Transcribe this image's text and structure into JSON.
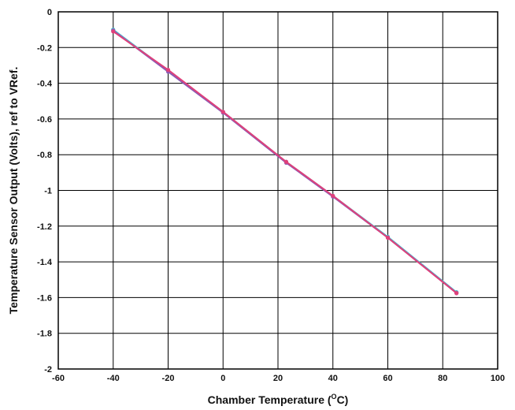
{
  "chart_data": {
    "type": "line",
    "title": "",
    "xlabel_prefix": "Chamber Temperature (",
    "xlabel_sup": "O",
    "xlabel_suffix": "C)",
    "ylabel": "Temperature Sensor Output (Volts), ref to VRef.",
    "xlim": [
      -60,
      100
    ],
    "ylim": [
      -2,
      0
    ],
    "x_ticks": [
      -60,
      -40,
      -20,
      0,
      20,
      40,
      60,
      80,
      100
    ],
    "y_ticks": [
      0,
      -0.2,
      -0.4,
      -0.6,
      -0.8,
      -1,
      -1.2,
      -1.4,
      -1.6,
      -1.8,
      -2
    ],
    "x_tick_labels": [
      "-60",
      "-40",
      "-20",
      "0",
      "20",
      "40",
      "60",
      "80",
      "100"
    ],
    "y_tick_labels": [
      "0",
      "-0.2",
      "-0.4",
      "-0.6",
      "-0.8",
      "-1",
      "-1.2",
      "-1.4",
      "-1.6",
      "-1.8",
      "-2"
    ],
    "grid": true,
    "legend": "none",
    "series": [
      {
        "color": "#4fb3c8",
        "x": [
          -40,
          -20,
          0,
          23,
          40,
          60,
          85
        ],
        "y": [
          -0.1,
          -0.33,
          -0.56,
          -0.84,
          -1.03,
          -1.26,
          -1.57
        ]
      },
      {
        "color": "#8a5bb5",
        "x": [
          -40,
          -20,
          0,
          23,
          40,
          60,
          85
        ],
        "y": [
          -0.105,
          -0.335,
          -0.565,
          -0.845,
          -1.035,
          -1.265,
          -1.575
        ]
      },
      {
        "color": "#e0407a",
        "x": [
          -40,
          -20,
          0,
          23,
          40,
          60,
          85
        ],
        "y": [
          -0.11,
          -0.325,
          -0.56,
          -0.84,
          -1.03,
          -1.265,
          -1.575
        ]
      }
    ]
  }
}
